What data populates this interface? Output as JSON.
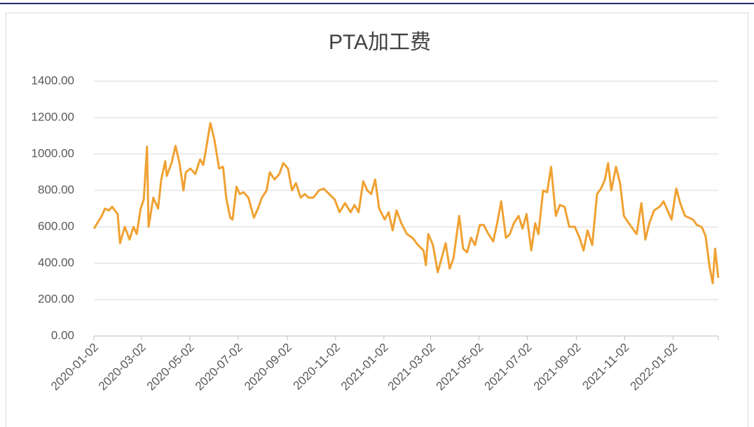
{
  "chart_data": {
    "type": "line",
    "title": "PTA加工费",
    "x": [
      "2020-01-02",
      "2020-01-12",
      "2020-01-16",
      "2020-01-21",
      "2020-01-25",
      "2020-02-01",
      "2020-02-04",
      "2020-02-10",
      "2020-02-16",
      "2020-02-21",
      "2020-02-25",
      "2020-03-01",
      "2020-03-05",
      "2020-03-09",
      "2020-03-11",
      "2020-03-17",
      "2020-03-23",
      "2020-03-27",
      "2020-04-01",
      "2020-04-03",
      "2020-04-09",
      "2020-04-14",
      "2020-04-19",
      "2020-04-24",
      "2020-04-27",
      "2020-05-03",
      "2020-05-09",
      "2020-05-15",
      "2020-05-19",
      "2020-05-23",
      "2020-05-28",
      "2020-06-02",
      "2020-06-08",
      "2020-06-13",
      "2020-06-17",
      "2020-06-22",
      "2020-06-25",
      "2020-06-30",
      "2020-07-04",
      "2020-07-09",
      "2020-07-15",
      "2020-07-22",
      "2020-07-27",
      "2020-08-01",
      "2020-08-07",
      "2020-08-11",
      "2020-08-17",
      "2020-08-23",
      "2020-08-28",
      "2020-09-03",
      "2020-09-08",
      "2020-09-13",
      "2020-09-19",
      "2020-09-24",
      "2020-09-29",
      "2020-10-05",
      "2020-10-12",
      "2020-10-18",
      "2020-10-25",
      "2020-11-01",
      "2020-11-07",
      "2020-11-14",
      "2020-11-21",
      "2020-11-26",
      "2020-12-01",
      "2020-12-07",
      "2020-12-12",
      "2020-12-17",
      "2020-12-22",
      "2020-12-27",
      "2021-01-03",
      "2021-01-08",
      "2021-01-13",
      "2021-01-18",
      "2021-01-24",
      "2021-01-31",
      "2021-02-07",
      "2021-02-14",
      "2021-02-21",
      "2021-02-24",
      "2021-02-27",
      "2021-03-05",
      "2021-03-11",
      "2021-03-16",
      "2021-03-21",
      "2021-03-26",
      "2021-03-31",
      "2021-04-07",
      "2021-04-12",
      "2021-04-17",
      "2021-04-22",
      "2021-04-27",
      "2021-05-03",
      "2021-05-08",
      "2021-05-14",
      "2021-05-20",
      "2021-05-25",
      "2021-05-30",
      "2021-06-05",
      "2021-06-10",
      "2021-06-15",
      "2021-06-21",
      "2021-06-26",
      "2021-07-01",
      "2021-07-07",
      "2021-07-12",
      "2021-07-16",
      "2021-07-22",
      "2021-07-27",
      "2021-08-01",
      "2021-08-07",
      "2021-08-12",
      "2021-08-18",
      "2021-08-24",
      "2021-08-31",
      "2021-09-06",
      "2021-09-11",
      "2021-09-16",
      "2021-09-22",
      "2021-09-28",
      "2021-10-03",
      "2021-10-08",
      "2021-10-12",
      "2021-10-16",
      "2021-10-22",
      "2021-10-27",
      "2021-11-01",
      "2021-11-07",
      "2021-11-12",
      "2021-11-17",
      "2021-11-23",
      "2021-11-28",
      "2021-12-03",
      "2021-12-09",
      "2021-12-16",
      "2021-12-21",
      "2021-12-26",
      "2021-12-31",
      "2022-01-06",
      "2022-01-11",
      "2022-01-17",
      "2022-01-22",
      "2022-01-27",
      "2022-02-01",
      "2022-02-07",
      "2022-02-12",
      "2022-02-17",
      "2022-02-21",
      "2022-02-24",
      "2022-02-28"
    ],
    "series": [
      {
        "color": "#f0a132",
        "values": [
          590,
          660,
          700,
          690,
          710,
          670,
          510,
          600,
          530,
          600,
          560,
          700,
          750,
          1040,
          600,
          760,
          700,
          860,
          960,
          880,
          950,
          1045,
          950,
          800,
          900,
          920,
          890,
          970,
          940,
          1040,
          1170,
          1080,
          920,
          930,
          760,
          650,
          640,
          820,
          780,
          790,
          760,
          650,
          700,
          760,
          800,
          900,
          860,
          890,
          950,
          920,
          800,
          840,
          760,
          780,
          760,
          760,
          800,
          810,
          780,
          750,
          680,
          730,
          680,
          720,
          680,
          850,
          800,
          780,
          860,
          700,
          640,
          680,
          580,
          690,
          620,
          560,
          540,
          500,
          470,
          390,
          560,
          500,
          350,
          430,
          510,
          370,
          430,
          660,
          480,
          460,
          540,
          500,
          610,
          610,
          560,
          520,
          620,
          740,
          540,
          560,
          620,
          660,
          590,
          670,
          470,
          620,
          560,
          800,
          790,
          930,
          660,
          720,
          710,
          600,
          600,
          540,
          470,
          580,
          500,
          780,
          810,
          860,
          950,
          800,
          930,
          840,
          660,
          620,
          590,
          560,
          730,
          530,
          620,
          690,
          710,
          740,
          690,
          640,
          810,
          730,
          660,
          650,
          640,
          610,
          600,
          550,
          380,
          290,
          480,
          320
        ]
      }
    ],
    "xlim": [
      "2020-01-02",
      "2022-02-28"
    ],
    "xticks": [
      "2020-01-02",
      "2020-03-02",
      "2020-05-02",
      "2020-07-02",
      "2020-09-02",
      "2020-11-02",
      "2021-01-02",
      "2021-03-02",
      "2021-05-02",
      "2021-07-02",
      "2021-09-02",
      "2021-11-02",
      "2022-01-02"
    ],
    "ylim": [
      0,
      1400
    ],
    "yticks": [
      {
        "value": 0,
        "label": "0.00"
      },
      {
        "value": 200,
        "label": "200.00"
      },
      {
        "value": 400,
        "label": "400.00"
      },
      {
        "value": 600,
        "label": "600.00"
      },
      {
        "value": 800,
        "label": "800.00"
      },
      {
        "value": 1000,
        "label": "1000.00"
      },
      {
        "value": 1200,
        "label": "1200.00"
      },
      {
        "value": 1400,
        "label": "1400.00"
      }
    ],
    "grid": true
  }
}
